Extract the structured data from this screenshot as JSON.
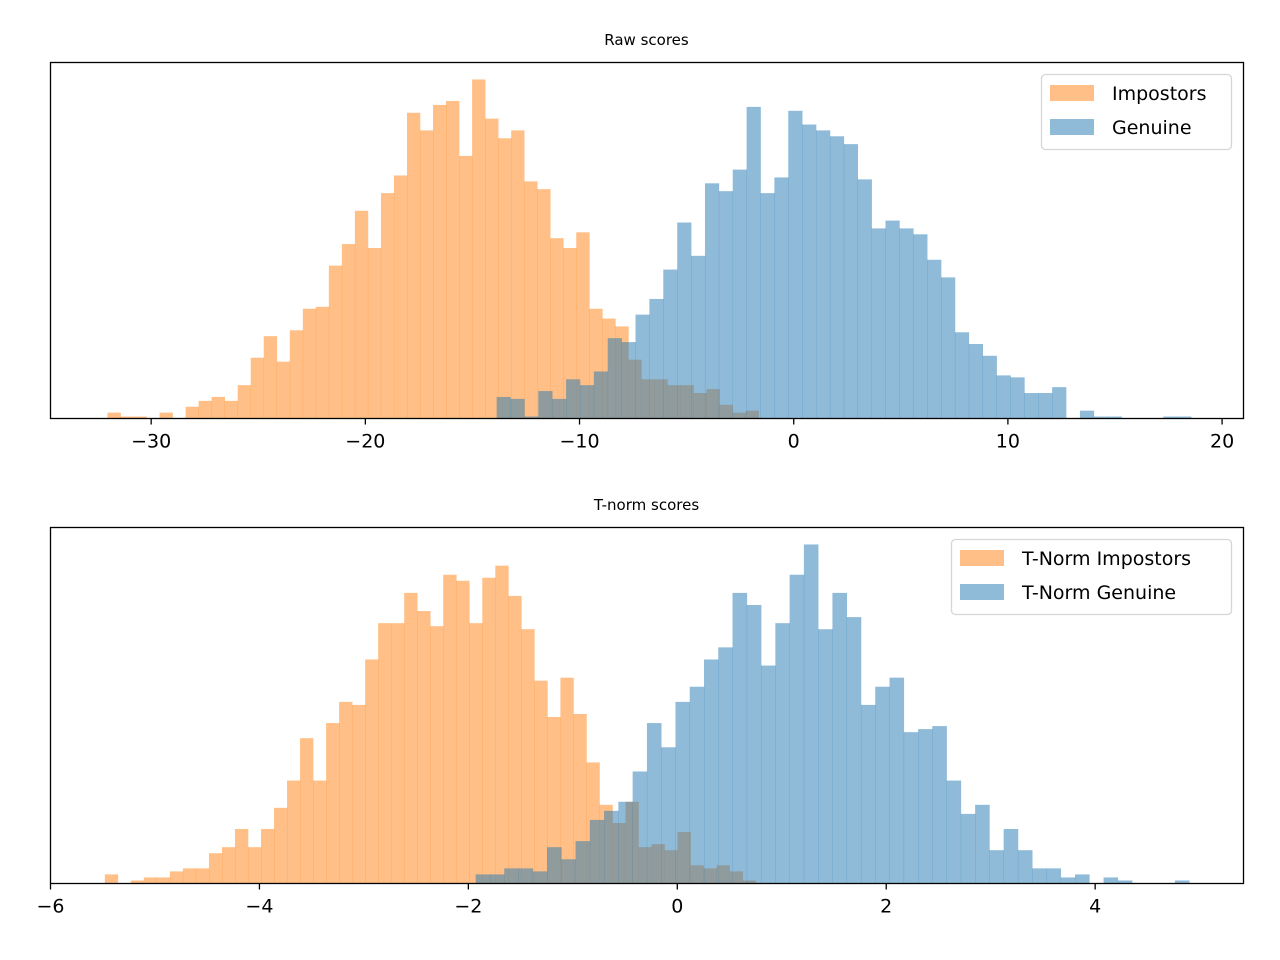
{
  "chart_data": [
    {
      "type": "histogram",
      "title": "Raw scores",
      "xlabel": "",
      "ylabel": "",
      "xlim": [
        -34.7,
        21.0
      ],
      "x_ticks": [
        -30,
        -20,
        -10,
        0,
        10,
        20
      ],
      "x_tick_labels": [
        "−30",
        "−20",
        "−10",
        "0",
        "10",
        "20"
      ],
      "y_ticks": [],
      "grid": false,
      "legend_position": "top-right",
      "series": [
        {
          "name": "Impostors",
          "color": "#ff7f0e",
          "alpha": 0.5,
          "range": [
            -32.04,
            -1.64
          ],
          "bins": 50,
          "counts": [
            3,
            1,
            1,
            0,
            3,
            0,
            6,
            9,
            11,
            9,
            17,
            31,
            42,
            29,
            45,
            56,
            57,
            78,
            89,
            106,
            87,
            115,
            124,
            156,
            147,
            160,
            162,
            134,
            173,
            153,
            143,
            147,
            121,
            117,
            92,
            87,
            95,
            56,
            51,
            47,
            30,
            20,
            20,
            17,
            17,
            13,
            15,
            7,
            3,
            4
          ]
        },
        {
          "name": "Genuine",
          "color": "#1f77b4",
          "alpha": 0.5,
          "range": [
            -13.87,
            18.55
          ],
          "bins": 50,
          "counts": [
            11,
            10,
            1,
            14,
            10,
            20,
            17,
            24,
            41,
            39,
            53,
            61,
            76,
            100,
            83,
            120,
            116,
            127,
            159,
            115,
            123,
            157,
            150,
            147,
            144,
            140,
            122,
            97,
            101,
            97,
            94,
            81,
            72,
            44,
            38,
            32,
            22,
            21,
            13,
            13,
            16,
            0,
            4,
            1,
            1,
            0,
            0,
            0,
            1,
            1
          ]
        }
      ]
    },
    {
      "type": "histogram",
      "title": "T-norm scores",
      "xlabel": "",
      "ylabel": "",
      "xlim": [
        -6.0,
        5.42
      ],
      "x_ticks": [
        -6,
        -4,
        -2,
        0,
        2,
        4
      ],
      "x_tick_labels": [
        "−6",
        "−4",
        "−2",
        "0",
        "2",
        "4"
      ],
      "y_ticks": [],
      "grid": false,
      "legend_position": "top-right",
      "series": [
        {
          "name": "T-Norm Impostors",
          "color": "#ff7f0e",
          "alpha": 0.5,
          "range": [
            -5.48,
            0.75
          ],
          "bins": 50,
          "counts": [
            3,
            0,
            1,
            2,
            2,
            4,
            5,
            5,
            10,
            12,
            18,
            12,
            18,
            25,
            34,
            48,
            34,
            53,
            60,
            59,
            74,
            86,
            86,
            96,
            90,
            85,
            102,
            100,
            86,
            101,
            105,
            95,
            84,
            67,
            55,
            68,
            56,
            40,
            26,
            20,
            27,
            12,
            13,
            11,
            17,
            6,
            5,
            6,
            4,
            1
          ]
        },
        {
          "name": "T-Norm Genuine",
          "color": "#1f77b4",
          "alpha": 0.5,
          "range": [
            -1.93,
            4.9
          ],
          "bins": 50,
          "counts": [
            3,
            3,
            5,
            5,
            4,
            12,
            8,
            14,
            21,
            24,
            27,
            37,
            53,
            45,
            60,
            65,
            74,
            78,
            96,
            92,
            72,
            86,
            102,
            112,
            84,
            96,
            88,
            59,
            65,
            68,
            50,
            51,
            52,
            34,
            23,
            26,
            11,
            18,
            11,
            5,
            5,
            2,
            3,
            0,
            2,
            1,
            0,
            0,
            0,
            1
          ]
        }
      ]
    }
  ]
}
